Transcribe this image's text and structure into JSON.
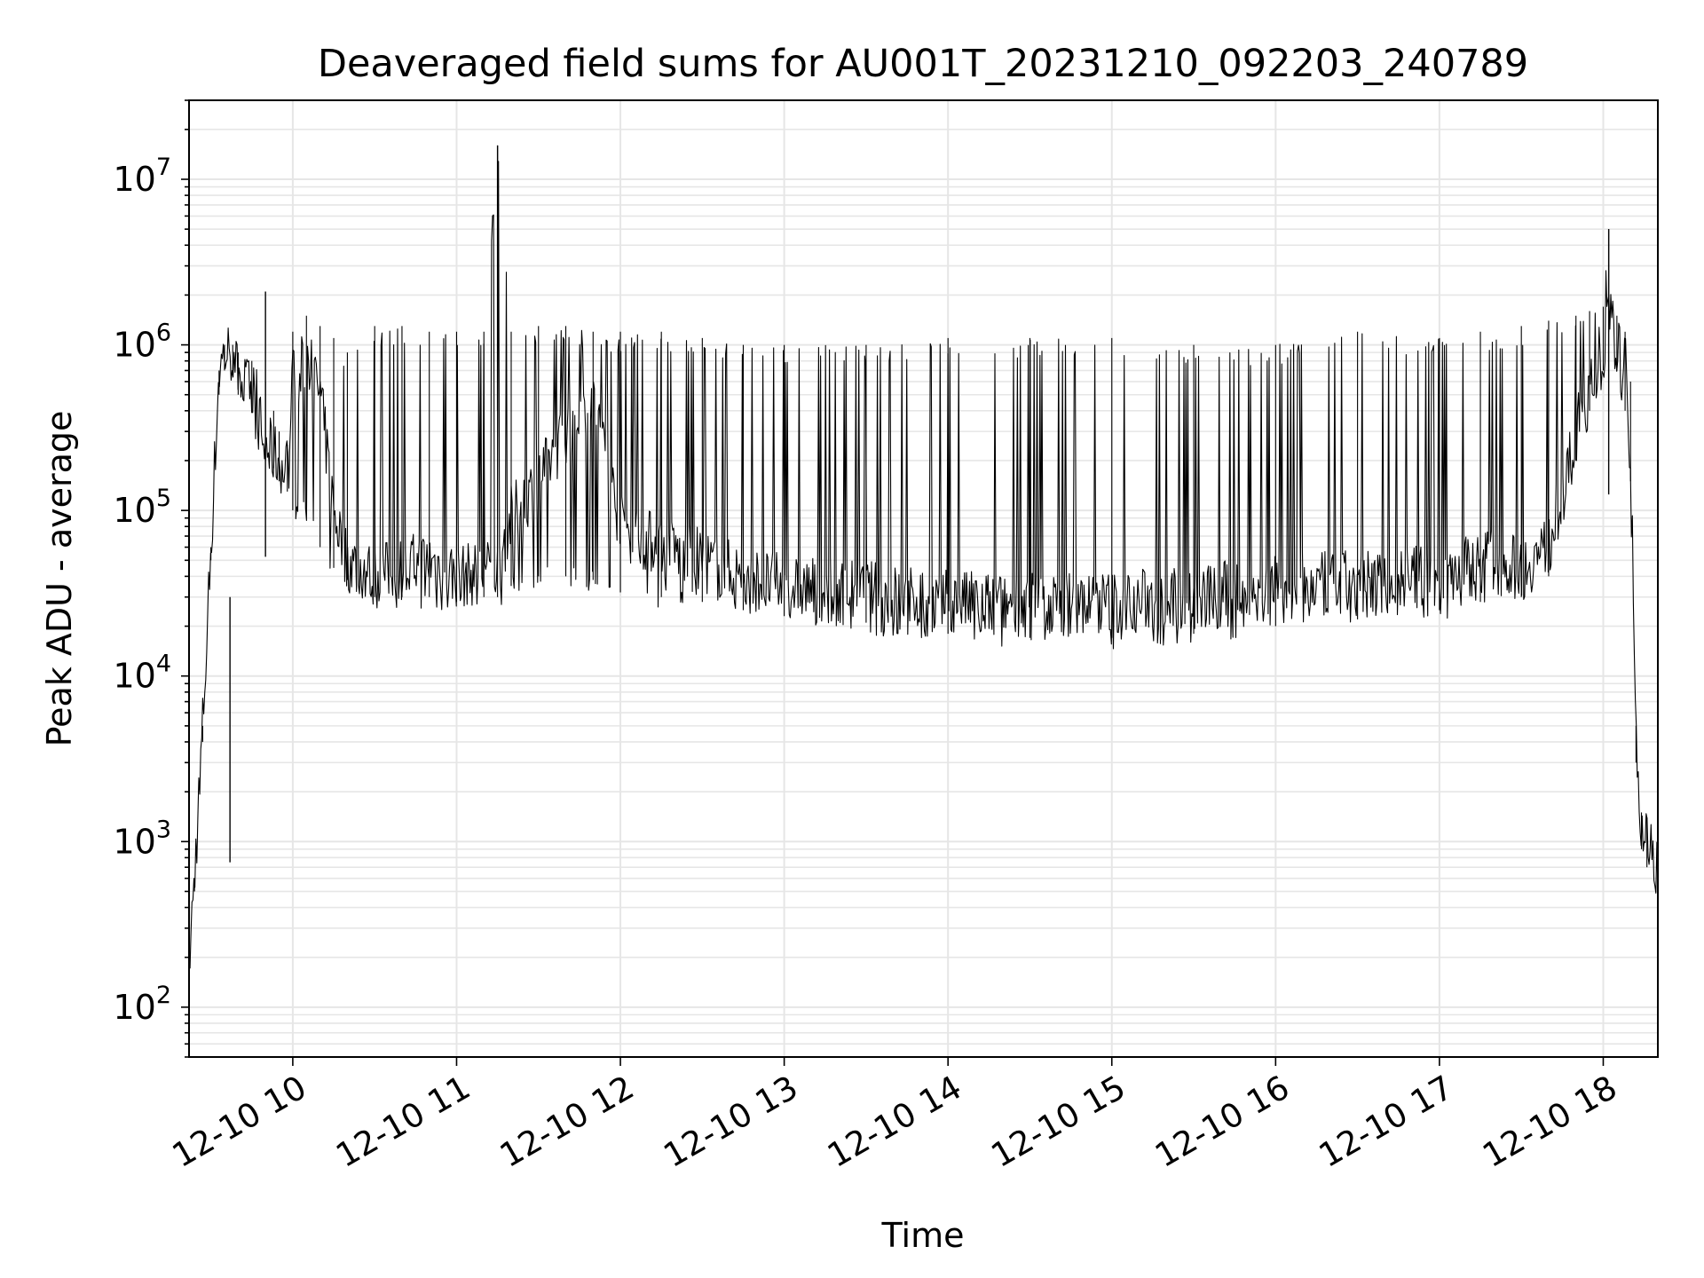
{
  "chart_data": {
    "type": "line",
    "title": "Deaveraged field sums for AU001T_20231210_092203_240789",
    "xlabel": "Time",
    "ylabel": "Peak ADU - average",
    "yscale": "log",
    "ylim": [
      50,
      30000000
    ],
    "xlim": [
      "2023-12-10T09:22:00",
      "2023-12-10T18:20:00"
    ],
    "grid": true,
    "legend": "none",
    "line_color": "#000000",
    "grid_color": "#e6e6e6",
    "x_ticks": [
      {
        "value": "2023-12-10T10:00:00",
        "label": "12-10 10"
      },
      {
        "value": "2023-12-10T11:00:00",
        "label": "12-10 11"
      },
      {
        "value": "2023-12-10T12:00:00",
        "label": "12-10 12"
      },
      {
        "value": "2023-12-10T13:00:00",
        "label": "12-10 13"
      },
      {
        "value": "2023-12-10T14:00:00",
        "label": "12-10 14"
      },
      {
        "value": "2023-12-10T15:00:00",
        "label": "12-10 15"
      },
      {
        "value": "2023-12-10T16:00:00",
        "label": "12-10 16"
      },
      {
        "value": "2023-12-10T17:00:00",
        "label": "12-10 17"
      },
      {
        "value": "2023-12-10T18:00:00",
        "label": "12-10 18"
      }
    ],
    "y_ticks": [
      {
        "value": 100,
        "base": "10",
        "exp": "2"
      },
      {
        "value": 1000,
        "base": "10",
        "exp": "3"
      },
      {
        "value": 10000,
        "base": "10",
        "exp": "4"
      },
      {
        "value": 100000,
        "base": "10",
        "exp": "5"
      },
      {
        "value": 1000000,
        "base": "10",
        "exp": "6"
      },
      {
        "value": 10000000,
        "base": "10",
        "exp": "7"
      }
    ],
    "series": [
      {
        "name": "",
        "x": [
          "2023-12-10T09:22:00",
          "2023-12-10T09:24:00",
          "2023-12-10T09:27:00",
          "2023-12-10T09:30:00",
          "2023-12-10T09:33:00",
          "2023-12-10T09:35:00",
          "2023-12-10T09:38:00",
          "2023-12-10T09:40:00",
          "2023-12-10T09:45:00",
          "2023-12-10T09:50:00",
          "2023-12-10T09:53:00",
          "2023-12-10T09:55:00",
          "2023-12-10T09:58:00",
          "2023-12-10T10:00:00",
          "2023-12-10T10:05:00",
          "2023-12-10T10:10:00",
          "2023-12-10T10:15:00",
          "2023-12-10T10:20:00",
          "2023-12-10T10:30:00",
          "2023-12-10T10:40:00",
          "2023-12-10T10:50:00",
          "2023-12-10T11:00:00",
          "2023-12-10T11:10:00",
          "2023-12-10T11:15:00",
          "2023-12-10T11:20:00",
          "2023-12-10T11:30:00",
          "2023-12-10T11:40:00",
          "2023-12-10T11:50:00",
          "2023-12-10T12:00:00",
          "2023-12-10T12:15:00",
          "2023-12-10T12:30:00",
          "2023-12-10T12:45:00",
          "2023-12-10T13:00:00",
          "2023-12-10T13:30:00",
          "2023-12-10T14:00:00",
          "2023-12-10T14:30:00",
          "2023-12-10T15:00:00",
          "2023-12-10T15:30:00",
          "2023-12-10T16:00:00",
          "2023-12-10T16:30:00",
          "2023-12-10T17:00:00",
          "2023-12-10T17:15:00",
          "2023-12-10T17:30:00",
          "2023-12-10T17:40:00",
          "2023-12-10T17:50:00",
          "2023-12-10T17:55:00",
          "2023-12-10T18:00:00",
          "2023-12-10T18:02:00",
          "2023-12-10T18:05:00",
          "2023-12-10T18:08:00",
          "2023-12-10T18:10:00",
          "2023-12-10T18:12:00",
          "2023-12-10T18:14:00",
          "2023-12-10T18:16:00",
          "2023-12-10T18:20:00"
        ],
        "baseline": [
          180,
          600,
          5000,
          60000,
          700000,
          900000,
          900000,
          650000,
          500000,
          250000,
          220000,
          200000,
          180000,
          300000,
          900000,
          500000,
          100000,
          50000,
          40000,
          45000,
          50000,
          40000,
          42000,
          45000,
          90000,
          150000,
          300000,
          500000,
          80000,
          60000,
          50000,
          40000,
          35000,
          32000,
          28000,
          27000,
          28000,
          30000,
          35000,
          37000,
          40000,
          50000,
          45000,
          60000,
          300000,
          500000,
          900000,
          1500000,
          1000000,
          600000,
          200000,
          5000,
          1200,
          1000,
          700
        ],
        "peak": [
          180,
          600,
          5000,
          60000,
          700000,
          1000000,
          1000000,
          900000,
          800000,
          600000,
          400000,
          300000,
          250000,
          1200000,
          1500000,
          1300000,
          1100000,
          900000,
          1300000,
          1300000,
          1200000,
          1200000,
          1200000,
          16000000,
          1200000,
          1300000,
          1300000,
          1200000,
          1200000,
          1200000,
          1100000,
          1000000,
          1000000,
          1000000,
          1100000,
          1100000,
          1100000,
          1000000,
          1000000,
          1200000,
          1100000,
          1200000,
          1300000,
          1400000,
          1500000,
          1600000,
          1700000,
          5000000,
          1500000,
          1200000,
          600000,
          5000,
          1500,
          1400,
          900
        ],
        "trough": [
          180,
          500,
          4000,
          50000,
          500000,
          700000,
          700000,
          500000,
          400000,
          200000,
          180000,
          150000,
          130000,
          100000,
          100000,
          60000,
          45000,
          38000,
          30000,
          30000,
          30000,
          28000,
          30000,
          30000,
          35000,
          40000,
          40000,
          38000,
          32000,
          30000,
          28000,
          25000,
          23000,
          21000,
          18000,
          17000,
          17000,
          18000,
          20000,
          22000,
          25000,
          28000,
          30000,
          40000,
          200000,
          400000,
          700000,
          1200000,
          700000,
          400000,
          150000,
          3000,
          900,
          700,
          500
        ]
      }
    ],
    "annotations": [
      {
        "x": "2023-12-10T09:50:00",
        "y": 2100000,
        "label": ""
      },
      {
        "x": "2023-12-10T11:15:00",
        "y": 16000000,
        "label": ""
      },
      {
        "x": "2023-12-10T18:02:00",
        "y": 5000000,
        "label": ""
      },
      {
        "x": "2023-12-10T09:37:00",
        "y": 30000,
        "label": ""
      }
    ]
  }
}
